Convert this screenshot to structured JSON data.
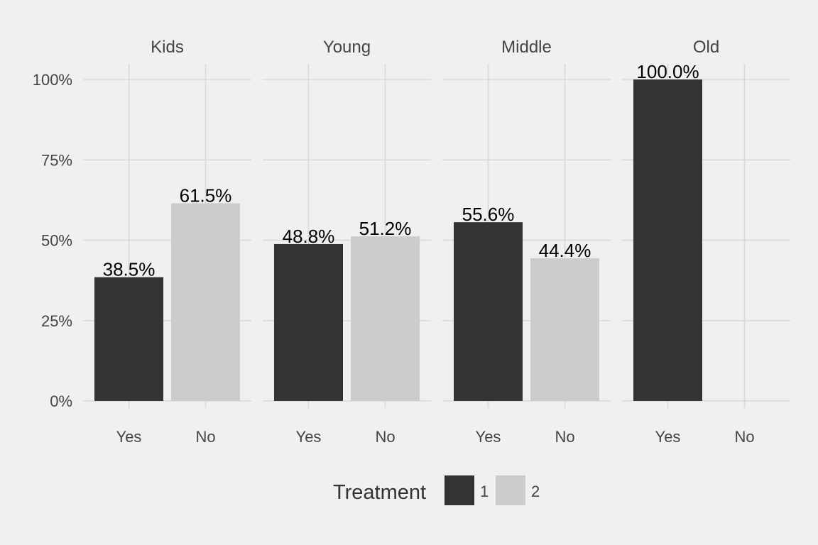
{
  "chart_data": {
    "type": "bar",
    "facets": [
      {
        "title": "Kids",
        "categories": [
          "Yes",
          "No"
        ],
        "values": [
          38.5,
          61.5
        ],
        "labels": [
          "38.5%",
          "61.5%"
        ]
      },
      {
        "title": "Young",
        "categories": [
          "Yes",
          "No"
        ],
        "values": [
          48.8,
          51.2
        ],
        "labels": [
          "48.8%",
          "51.2%"
        ]
      },
      {
        "title": "Middle",
        "categories": [
          "Yes",
          "No"
        ],
        "values": [
          55.6,
          44.4
        ],
        "labels": [
          "55.6%",
          "44.4%"
        ]
      },
      {
        "title": "Old",
        "categories": [
          "Yes",
          "No"
        ],
        "values": [
          100.0,
          null
        ],
        "labels": [
          "100.0%",
          ""
        ]
      }
    ],
    "series": [
      {
        "name": "1",
        "color": "#333333"
      },
      {
        "name": "2",
        "color": "#cccccc"
      }
    ],
    "yticks": [
      0,
      25,
      50,
      75,
      100
    ],
    "ytick_labels": [
      "0%",
      "25%",
      "50%",
      "75%",
      "100%"
    ],
    "ylim": [
      0,
      100
    ],
    "legend": {
      "title": "Treatment",
      "position": "bottom"
    },
    "grid": true
  },
  "colors": {
    "background": "#f0f0f0",
    "grid": "#d9d9d9"
  }
}
